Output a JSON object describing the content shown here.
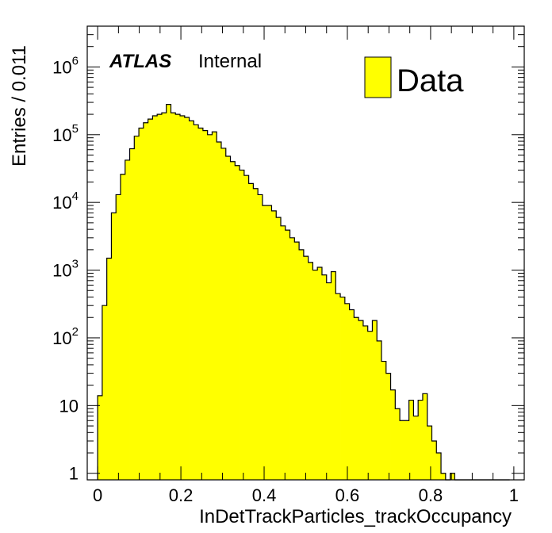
{
  "chart_data": {
    "type": "bar",
    "style": "histogram",
    "xlabel": "InDetTrackParticles_trackOccupancy",
    "ylabel": "Entries / 0.011",
    "bin_width": 0.011,
    "xlim": [
      -0.025,
      1.025
    ],
    "ylim": [
      0.8,
      4000000
    ],
    "y_scale": "log",
    "fill_color": "#ffff00",
    "line_color": "#000000",
    "x_ticks": [
      {
        "value": 0,
        "label": "0"
      },
      {
        "value": 0.2,
        "label": "0.2"
      },
      {
        "value": 0.4,
        "label": "0.4"
      },
      {
        "value": 0.6,
        "label": "0.6"
      },
      {
        "value": 0.8,
        "label": "0.8"
      },
      {
        "value": 1,
        "label": "1"
      }
    ],
    "y_ticks": [
      {
        "value": 1,
        "base": "1",
        "exp": ""
      },
      {
        "value": 10,
        "base": "10",
        "exp": ""
      },
      {
        "value": 100,
        "base": "10",
        "exp": "2"
      },
      {
        "value": 1000,
        "base": "10",
        "exp": "3"
      },
      {
        "value": 10000,
        "base": "10",
        "exp": "4"
      },
      {
        "value": 100000,
        "base": "10",
        "exp": "5"
      },
      {
        "value": 1000000,
        "base": "10",
        "exp": "6"
      }
    ],
    "legend": {
      "label": "Data",
      "position": "top-right"
    },
    "bin_edges_start": 0.0,
    "values": [
      14,
      300,
      1500,
      7000,
      13000,
      26000,
      42000,
      62000,
      95000,
      125000,
      150000,
      170000,
      190000,
      200000,
      210000,
      280000,
      210000,
      200000,
      190000,
      180000,
      160000,
      140000,
      125000,
      115000,
      100000,
      110000,
      78000,
      63000,
      48000,
      40000,
      35000,
      30000,
      25000,
      19000,
      16000,
      13000,
      9000,
      9000,
      7500,
      6000,
      4500,
      3900,
      3000,
      2600,
      2000,
      1600,
      1300,
      1000,
      1100,
      850,
      650,
      950,
      450,
      400,
      320,
      260,
      200,
      180,
      150,
      125,
      180,
      90,
      45,
      30,
      17,
      9,
      6,
      6,
      12,
      7,
      12,
      15,
      5,
      3,
      2,
      1,
      0,
      1,
      0,
      0,
      0,
      0,
      0,
      0,
      0,
      0,
      0,
      0,
      0,
      0
    ]
  },
  "annotations": {
    "atlas": "ATLAS",
    "internal": "Internal"
  }
}
